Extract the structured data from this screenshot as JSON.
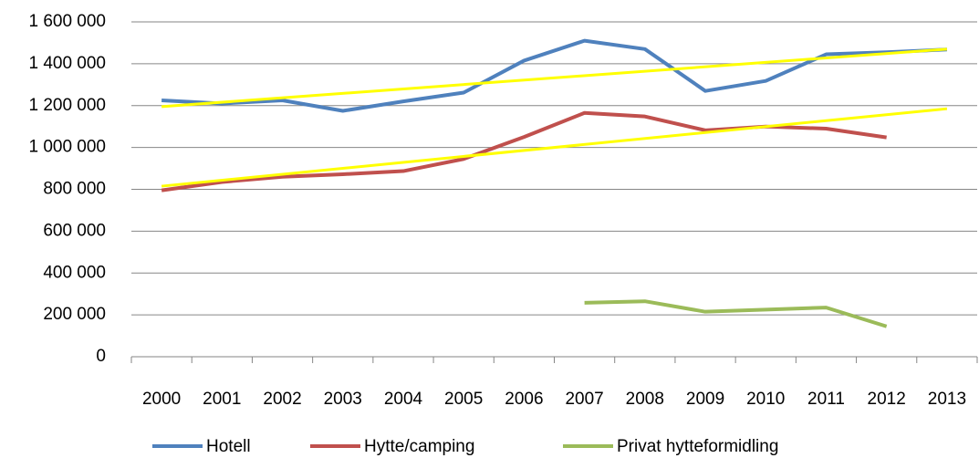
{
  "chart_data": {
    "type": "line",
    "categories": [
      "2000",
      "2001",
      "2002",
      "2003",
      "2004",
      "2005",
      "2006",
      "2007",
      "2008",
      "2009",
      "2010",
      "2011",
      "2012",
      "2013"
    ],
    "series": [
      {
        "name": "Hotell",
        "color": "#4f81bd",
        "values": [
          1225000,
          1210000,
          1225000,
          1175000,
          1220000,
          1262000,
          1415000,
          1510000,
          1470000,
          1270000,
          1318000,
          1445000,
          1455000,
          1468000
        ]
      },
      {
        "name": "Hytte/camping",
        "color": "#c0504d",
        "values": [
          795000,
          835000,
          860000,
          872000,
          887000,
          945000,
          1050000,
          1165000,
          1148000,
          1082000,
          1100000,
          1090000,
          1048000,
          null
        ]
      },
      {
        "name": "Privat hytteformidling",
        "color": "#9bbb59",
        "values": [
          null,
          null,
          null,
          null,
          null,
          null,
          null,
          258000,
          265000,
          215000,
          225000,
          235000,
          145000,
          null
        ]
      }
    ],
    "trendlines": [
      {
        "series": 0,
        "color": "#ffff00",
        "values": [
          1195000,
          1470000
        ]
      },
      {
        "series": 1,
        "color": "#ffff00",
        "values": [
          815000,
          1185000
        ]
      }
    ],
    "ylim": [
      0,
      1600000
    ],
    "yticks": [
      0,
      {
        "value": 200000,
        "label": "200 000"
      },
      {
        "value": 400000,
        "label": "400 000"
      },
      {
        "value": 600000,
        "label": "600 000"
      },
      {
        "value": 800000,
        "label": "800 000"
      },
      {
        "value": 1000000,
        "label": "1 000 000"
      },
      {
        "value": 1200000,
        "label": "1 200 000"
      },
      {
        "value": 1400000,
        "label": "1 400 000"
      },
      {
        "value": 1600000,
        "label": "1 600 000"
      }
    ],
    "grid": true,
    "legend": "bottom"
  }
}
